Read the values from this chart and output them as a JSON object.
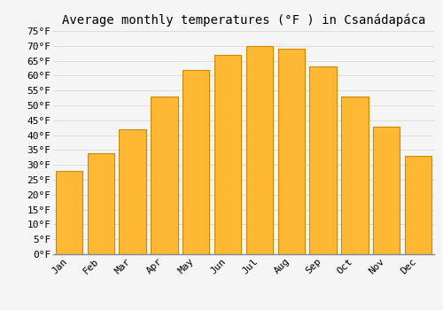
{
  "title": "Average monthly temperatures (°F ) in Csanádapáca",
  "months": [
    "Jan",
    "Feb",
    "Mar",
    "Apr",
    "May",
    "Jun",
    "Jul",
    "Aug",
    "Sep",
    "Oct",
    "Nov",
    "Dec"
  ],
  "values": [
    28,
    34,
    42,
    53,
    62,
    67,
    70,
    69,
    63,
    53,
    43,
    33
  ],
  "bar_color": "#FFA500",
  "bar_face_color": "#FFB833",
  "bar_edge_color": "#CC8800",
  "background_color": "#F5F5F5",
  "plot_bg_color": "#F5F5F5",
  "grid_color": "#DDDDDD",
  "ylim": [
    0,
    75
  ],
  "yticks": [
    0,
    5,
    10,
    15,
    20,
    25,
    30,
    35,
    40,
    45,
    50,
    55,
    60,
    65,
    70,
    75
  ],
  "title_fontsize": 10,
  "tick_fontsize": 8,
  "font_family": "monospace",
  "bar_width": 0.85
}
